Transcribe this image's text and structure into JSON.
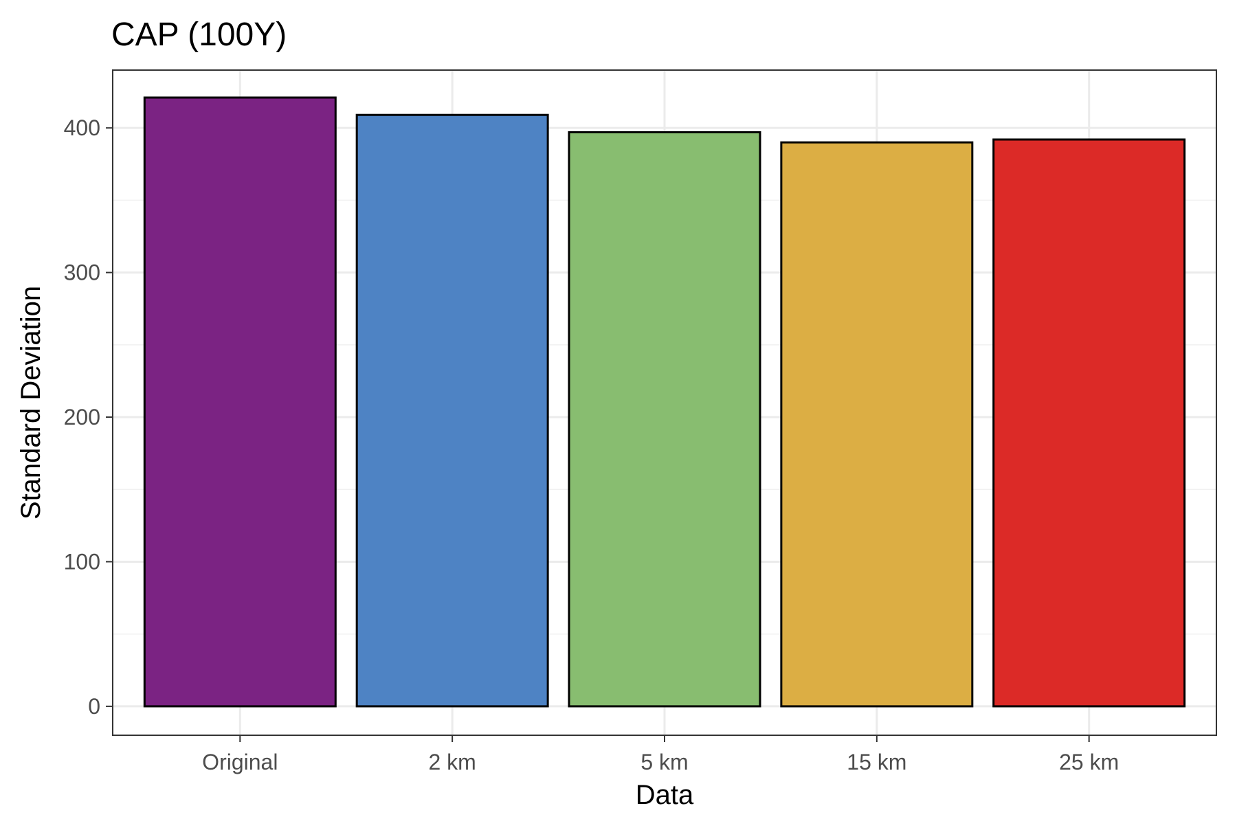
{
  "chart_data": {
    "type": "bar",
    "title": "CAP (100Y)",
    "xlabel": "Data",
    "ylabel": "Standard Deviation",
    "categories": [
      "Original",
      "2 km",
      "5 km",
      "15 km",
      "25 km"
    ],
    "values": [
      421,
      409,
      397,
      390,
      392
    ],
    "colors": [
      "#7B2383",
      "#4E83C4",
      "#88BD70",
      "#DCAE44",
      "#DC2A27"
    ],
    "bar_outline_color": "#000000",
    "ylim": [
      -20,
      440
    ],
    "yticks": [
      0,
      100,
      200,
      300,
      400
    ],
    "ytick_labels": [
      "0",
      "100",
      "200",
      "300",
      "400"
    ],
    "grid": true,
    "legend": "none"
  }
}
